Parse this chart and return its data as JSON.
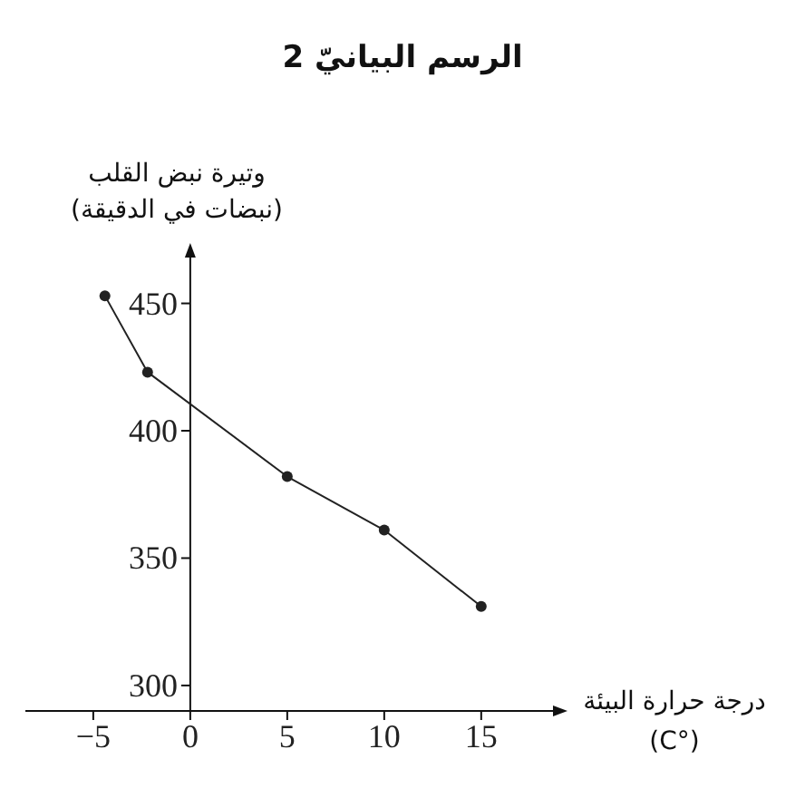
{
  "chart_data": {
    "type": "line",
    "title": "الرسم البيانيّ 2",
    "xlabel": "درجة حرارة البيئة (°C)",
    "ylabel": "وتيرة نبض القلب (نبضات في الدقيقة)",
    "x": [
      -4.4,
      -2.2,
      5,
      10,
      15
    ],
    "series": [
      {
        "color": "#222222",
        "values": [
          453,
          423,
          382,
          361,
          331
        ]
      }
    ],
    "marker": "circle",
    "line_style": "solid",
    "grid": false,
    "xlim": [
      -8.5,
      18.7
    ],
    "xticks": [
      -5,
      0,
      5,
      10,
      15
    ],
    "ylim": [
      290,
      468
    ],
    "yticks": [
      300,
      350,
      400,
      450
    ]
  }
}
